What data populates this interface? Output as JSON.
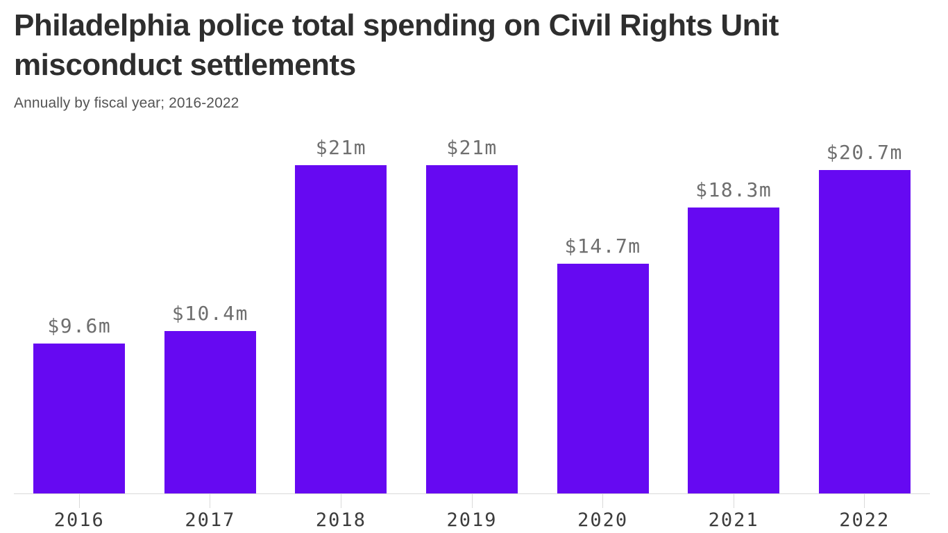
{
  "header": {
    "title": "Philadelphia police total spending on Civil Rights Unit misconduct settlements",
    "title_line1": "Philadelphia police total spending on Civil Rights Unit",
    "title_line2": "misconduct settlements",
    "subtitle": "Annually by fiscal year; 2016-2022"
  },
  "colors": {
    "bar": "#6609f2",
    "axis_line": "#d9d9d9",
    "value_label": "#6e6e6e",
    "year_label": "#3c3c3c",
    "title": "#2e2e2e",
    "subtitle": "#545454",
    "background": "#ffffff"
  },
  "chart_data": {
    "type": "bar",
    "title": "Philadelphia police total spending on Civil Rights Unit misconduct settlements",
    "subtitle": "Annually by fiscal year; 2016-2022",
    "categories": [
      "2016",
      "2017",
      "2018",
      "2019",
      "2020",
      "2021",
      "2022"
    ],
    "values": [
      9.6,
      10.4,
      21,
      21,
      14.7,
      18.3,
      20.7
    ],
    "value_labels": [
      "$9.6m",
      "$10.4m",
      "$21m",
      "$21m",
      "$14.7m",
      "$18.3m",
      "$20.7m"
    ],
    "unit": "millions USD",
    "xlabel": "",
    "ylabel": "",
    "ylim": [
      0,
      21
    ],
    "grid": false,
    "legend": false,
    "bar_color": "#6609f2",
    "orientation": "vertical",
    "data_labels_position": "above-bar",
    "baseline_axis": "bottom"
  }
}
